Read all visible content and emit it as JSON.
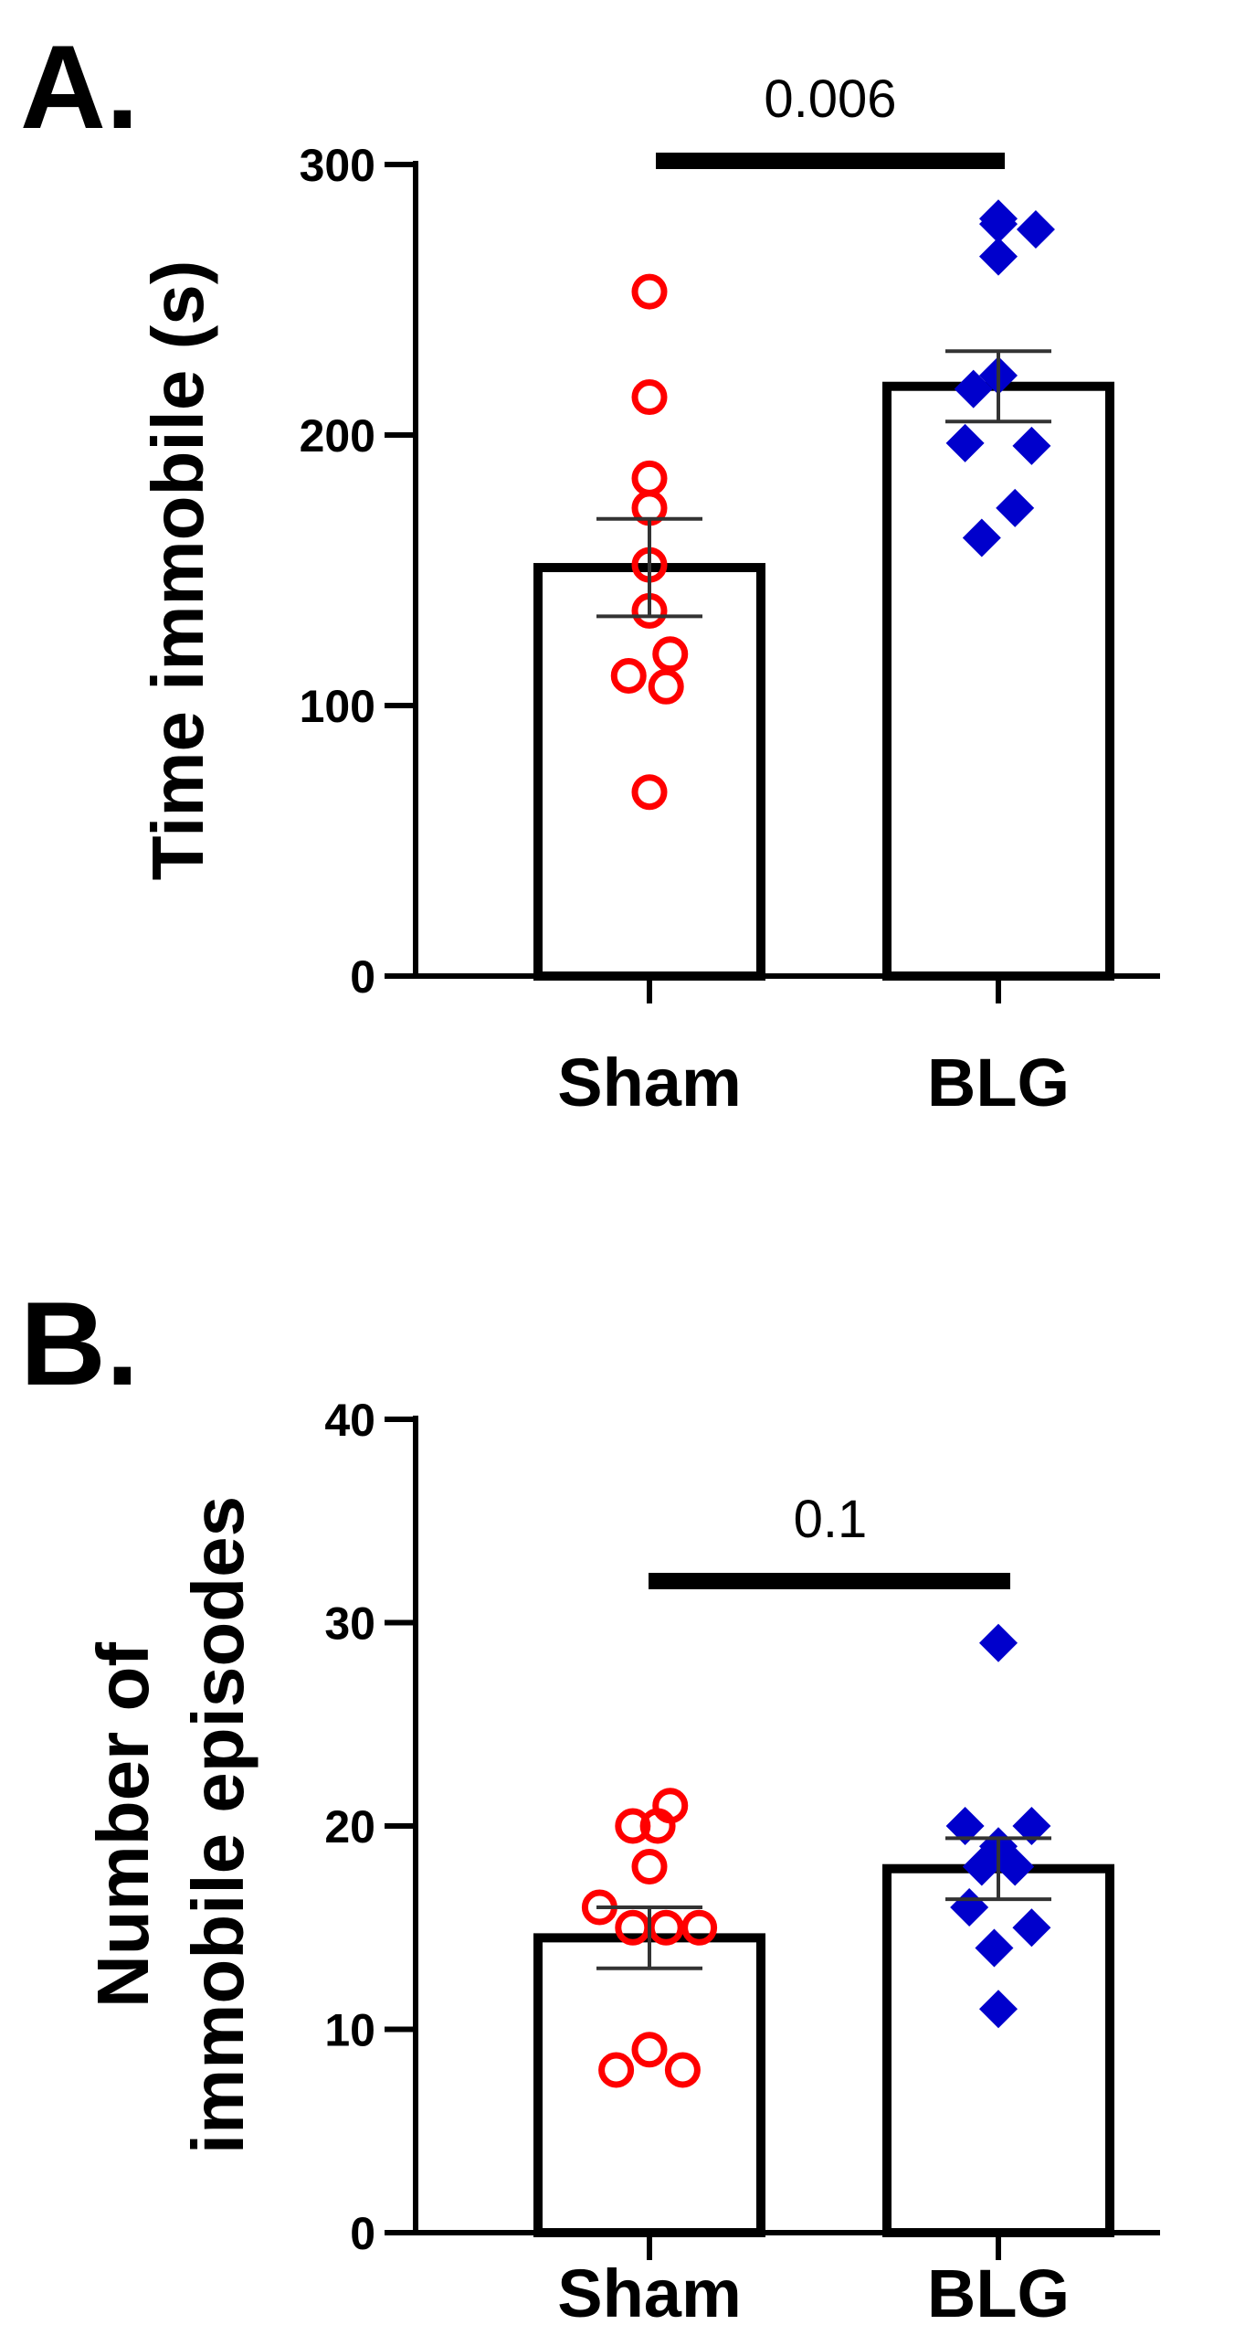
{
  "chart_data": [
    {
      "type": "bar",
      "panel_label": "A.",
      "title": "",
      "xlabel": "",
      "ylabel": "Time immobile (s)",
      "ylim": [
        0,
        300
      ],
      "yticks": [
        0,
        100,
        200,
        300
      ],
      "categories": [
        "Sham",
        "BLG"
      ],
      "bar_values": [
        151,
        218
      ],
      "sem": [
        18,
        13
      ],
      "significance": {
        "label": "0.006",
        "between": [
          "Sham",
          "BLG"
        ]
      },
      "points": [
        {
          "group": "Sham",
          "marker": "circle-open",
          "color": "#ff0000",
          "values": [
            253,
            214,
            184,
            173,
            152,
            135,
            119,
            111,
            107,
            68
          ],
          "offsets": [
            0.0,
            0.0,
            0.0,
            0.0,
            0.0,
            0.0,
            0.25,
            -0.25,
            0.2,
            0.0
          ]
        },
        {
          "group": "BLG",
          "marker": "diamond-filled",
          "color": "#0000cc",
          "values": [
            280,
            278,
            276,
            266,
            222,
            217,
            197,
            196,
            173,
            162
          ],
          "offsets": [
            0.0,
            0.0,
            0.45,
            0.0,
            0.0,
            -0.3,
            -0.4,
            0.4,
            0.2,
            -0.2
          ]
        }
      ]
    },
    {
      "type": "bar",
      "panel_label": "B.",
      "title": "",
      "xlabel": "",
      "ylabel_lines": [
        "Number of",
        "immobile episodes"
      ],
      "ylim": [
        0,
        40
      ],
      "yticks": [
        0,
        10,
        20,
        30,
        40
      ],
      "categories": [
        "Sham",
        "BLG"
      ],
      "bar_values": [
        14.5,
        17.9
      ],
      "sem": [
        1.5,
        1.5
      ],
      "significance": {
        "label": "0.1",
        "between": [
          "Sham",
          "BLG"
        ]
      },
      "points": [
        {
          "group": "Sham",
          "marker": "circle-open",
          "color": "#ff0000",
          "values": [
            21,
            20,
            20,
            18,
            16,
            15,
            15,
            15,
            9,
            8,
            8
          ],
          "offsets": [
            0.25,
            -0.2,
            0.1,
            0.0,
            -0.6,
            -0.2,
            0.2,
            0.6,
            0.0,
            -0.4,
            0.4
          ]
        },
        {
          "group": "BLG",
          "marker": "diamond-filled",
          "color": "#0000cc",
          "values": [
            29,
            20,
            20,
            19,
            18,
            18,
            16,
            15,
            14,
            11
          ],
          "offsets": [
            0.0,
            -0.4,
            0.4,
            0.0,
            -0.2,
            0.2,
            -0.35,
            0.4,
            -0.05,
            0.0
          ]
        }
      ]
    }
  ]
}
